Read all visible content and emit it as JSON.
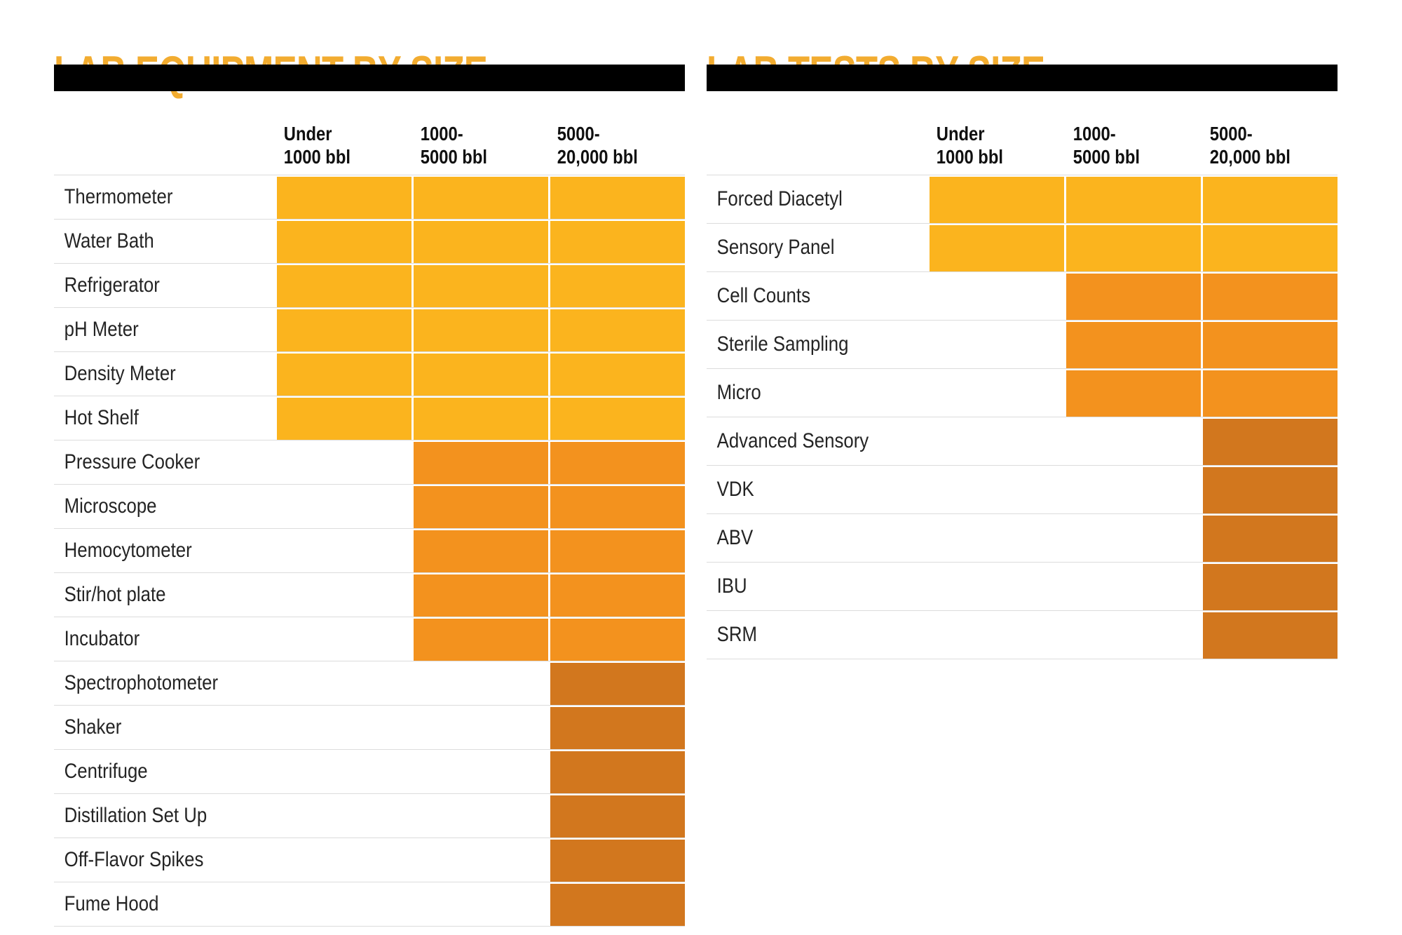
{
  "page": {
    "background": "#ffffff"
  },
  "colors": {
    "title": "#F2AC30",
    "bar": "#000000",
    "divider": "#dcdcdc",
    "header_text": "#101010",
    "label_text": "#242424",
    "yellow": "#FBB41E",
    "orange": "#F3921E",
    "dark": "#D2771E"
  },
  "tables": [
    {
      "title": "LAB EQUIPMENT BY SIZE",
      "column_headers": [
        "Under\n1000 bbl",
        "1000-\n5000 bbl",
        "5000-\n20,000 bbl"
      ],
      "rows": [
        {
          "label": "Thermometer",
          "cells": [
            "yellow",
            "yellow",
            "yellow"
          ]
        },
        {
          "label": "Water Bath",
          "cells": [
            "yellow",
            "yellow",
            "yellow"
          ]
        },
        {
          "label": "Refrigerator",
          "cells": [
            "yellow",
            "yellow",
            "yellow"
          ]
        },
        {
          "label": "pH Meter",
          "cells": [
            "yellow",
            "yellow",
            "yellow"
          ]
        },
        {
          "label": "Density Meter",
          "cells": [
            "yellow",
            "yellow",
            "yellow"
          ]
        },
        {
          "label": "Hot Shelf",
          "cells": [
            "yellow",
            "yellow",
            "yellow"
          ]
        },
        {
          "label": "Pressure Cooker",
          "cells": [
            "",
            "orange",
            "orange"
          ]
        },
        {
          "label": "Microscope",
          "cells": [
            "",
            "orange",
            "orange"
          ]
        },
        {
          "label": "Hemocytometer",
          "cells": [
            "",
            "orange",
            "orange"
          ]
        },
        {
          "label": "Stir/hot plate",
          "cells": [
            "",
            "orange",
            "orange"
          ]
        },
        {
          "label": "Incubator",
          "cells": [
            "",
            "orange",
            "orange"
          ]
        },
        {
          "label": "Spectrophotometer",
          "cells": [
            "",
            "",
            "dark"
          ]
        },
        {
          "label": "Shaker",
          "cells": [
            "",
            "",
            "dark"
          ]
        },
        {
          "label": "Centrifuge",
          "cells": [
            "",
            "",
            "dark"
          ]
        },
        {
          "label": "Distillation Set Up",
          "cells": [
            "",
            "",
            "dark"
          ]
        },
        {
          "label": "Off-Flavor Spikes",
          "cells": [
            "",
            "",
            "dark"
          ]
        },
        {
          "label": "Fume Hood",
          "cells": [
            "",
            "",
            "dark"
          ]
        }
      ]
    },
    {
      "title": "LAB TESTS BY SIZE",
      "column_headers": [
        "Under\n1000 bbl",
        "1000-\n5000 bbl",
        "5000-\n20,000 bbl"
      ],
      "rows": [
        {
          "label": "Forced Diacetyl",
          "cells": [
            "yellow",
            "yellow",
            "yellow"
          ]
        },
        {
          "label": "Sensory Panel",
          "cells": [
            "yellow",
            "yellow",
            "yellow"
          ]
        },
        {
          "label": "Cell Counts",
          "cells": [
            "",
            "orange",
            "orange"
          ]
        },
        {
          "label": "Sterile Sampling",
          "cells": [
            "",
            "orange",
            "orange"
          ]
        },
        {
          "label": "Micro",
          "cells": [
            "",
            "orange",
            "orange"
          ]
        },
        {
          "label": "Advanced Sensory",
          "cells": [
            "",
            "",
            "dark"
          ]
        },
        {
          "label": "VDK",
          "cells": [
            "",
            "",
            "dark"
          ]
        },
        {
          "label": "ABV",
          "cells": [
            "",
            "",
            "dark"
          ]
        },
        {
          "label": "IBU",
          "cells": [
            "",
            "",
            "dark"
          ]
        },
        {
          "label": "SRM",
          "cells": [
            "",
            "",
            "dark"
          ]
        }
      ]
    }
  ],
  "chart_data": [
    {
      "type": "heatmap",
      "title": "LAB EQUIPMENT BY SIZE",
      "columns": [
        "Under 1000 bbl",
        "1000-5000 bbl",
        "5000-20,000 bbl"
      ],
      "rows": [
        "Thermometer",
        "Water Bath",
        "Refrigerator",
        "pH Meter",
        "Density Meter",
        "Hot Shelf",
        "Pressure Cooker",
        "Microscope",
        "Hemocytometer",
        "Stir/hot plate",
        "Incubator",
        "Spectrophotometer",
        "Shaker",
        "Centrifuge",
        "Distillation Set Up",
        "Off-Flavor Spikes",
        "Fume Hood"
      ],
      "values": [
        [
          "yellow",
          "yellow",
          "yellow"
        ],
        [
          "yellow",
          "yellow",
          "yellow"
        ],
        [
          "yellow",
          "yellow",
          "yellow"
        ],
        [
          "yellow",
          "yellow",
          "yellow"
        ],
        [
          "yellow",
          "yellow",
          "yellow"
        ],
        [
          "yellow",
          "yellow",
          "yellow"
        ],
        [
          null,
          "orange",
          "orange"
        ],
        [
          null,
          "orange",
          "orange"
        ],
        [
          null,
          "orange",
          "orange"
        ],
        [
          null,
          "orange",
          "orange"
        ],
        [
          null,
          "orange",
          "orange"
        ],
        [
          null,
          null,
          "dark"
        ],
        [
          null,
          null,
          "dark"
        ],
        [
          null,
          null,
          "dark"
        ],
        [
          null,
          null,
          "dark"
        ],
        [
          null,
          null,
          "dark"
        ],
        [
          null,
          null,
          "dark"
        ]
      ],
      "legend_position": "none",
      "grid": "white gaps between filled cells, light gray row dividers"
    },
    {
      "type": "heatmap",
      "title": "LAB TESTS BY SIZE",
      "columns": [
        "Under 1000 bbl",
        "1000-5000 bbl",
        "5000-20,000 bbl"
      ],
      "rows": [
        "Forced Diacetyl",
        "Sensory Panel",
        "Cell Counts",
        "Sterile Sampling",
        "Micro",
        "Advanced Sensory",
        "VDK",
        "ABV",
        "IBU",
        "SRM"
      ],
      "values": [
        [
          "yellow",
          "yellow",
          "yellow"
        ],
        [
          "yellow",
          "yellow",
          "yellow"
        ],
        [
          null,
          "orange",
          "orange"
        ],
        [
          null,
          "orange",
          "orange"
        ],
        [
          null,
          "orange",
          "orange"
        ],
        [
          null,
          null,
          "dark"
        ],
        [
          null,
          null,
          "dark"
        ],
        [
          null,
          null,
          "dark"
        ],
        [
          null,
          null,
          "dark"
        ],
        [
          null,
          null,
          "dark"
        ]
      ],
      "legend_position": "none",
      "grid": "white gaps between filled cells, light gray row dividers"
    }
  ]
}
